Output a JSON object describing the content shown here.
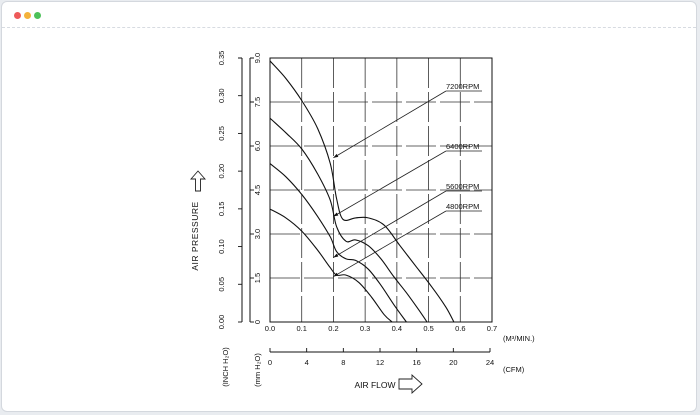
{
  "window": {
    "buttons": [
      {
        "name": "close",
        "color": "#ee5a5a"
      },
      {
        "name": "minimize",
        "color": "#f4b23b"
      },
      {
        "name": "zoom",
        "color": "#4dc15a"
      }
    ]
  },
  "chart_data": {
    "type": "line",
    "title": "",
    "y_axis_label": "AIR PRESSURE",
    "y_inch_unit": "(INCH H₂O)",
    "y_mm_unit": "(mm H₂O)",
    "y_inch_ticks": [
      "0.00",
      "0.05",
      "0.10",
      "0.15",
      "0.20",
      "0.25",
      "0.30",
      "0.35"
    ],
    "y_mm_ticks": [
      "0",
      "1.5",
      "3.0",
      "4.5",
      "6.0",
      "7.5",
      "9.0"
    ],
    "ylim_mm": [
      0,
      9
    ],
    "x_axis_label": "AIR FLOW",
    "x_m3_unit": "(M³/MIN.)",
    "x_m3_ticks": [
      "0.0",
      "0.1",
      "0.2",
      "0.3",
      "0.4",
      "0.5",
      "0.6",
      "0.7"
    ],
    "xlim_m3": [
      0,
      0.7
    ],
    "x_cfm_unit": "(CFM)",
    "x_cfm_ticks": [
      "0",
      "4",
      "8",
      "12",
      "16",
      "20",
      "24"
    ],
    "grid": true,
    "series": [
      {
        "name": "7200RPM",
        "x": [
          0,
          0.05,
          0.1,
          0.15,
          0.19,
          0.21,
          0.23,
          0.27,
          0.31,
          0.36,
          0.41,
          0.46,
          0.51,
          0.555,
          0.58
        ],
        "y": [
          8.9,
          8.3,
          7.55,
          6.6,
          5.4,
          4.2,
          3.5,
          3.55,
          3.55,
          3.3,
          2.6,
          1.9,
          1.2,
          0.5,
          0
        ]
      },
      {
        "name": "6400RPM",
        "x": [
          0,
          0.05,
          0.1,
          0.15,
          0.19,
          0.21,
          0.24,
          0.27,
          0.31,
          0.35,
          0.39,
          0.43,
          0.47,
          0.495
        ],
        "y": [
          6.95,
          6.45,
          5.9,
          5.05,
          4.15,
          3.25,
          2.75,
          2.8,
          2.6,
          2.15,
          1.55,
          1.0,
          0.4,
          0
        ]
      },
      {
        "name": "5600RPM",
        "x": [
          0,
          0.05,
          0.1,
          0.15,
          0.19,
          0.21,
          0.24,
          0.27,
          0.31,
          0.35,
          0.39,
          0.43
        ],
        "y": [
          5.4,
          4.95,
          4.35,
          3.6,
          2.9,
          2.4,
          2.15,
          2.1,
          1.8,
          1.25,
          0.6,
          0
        ]
      },
      {
        "name": "4800RPM",
        "x": [
          0,
          0.05,
          0.1,
          0.15,
          0.19,
          0.21,
          0.24,
          0.28,
          0.32,
          0.36,
          0.385
        ],
        "y": [
          3.85,
          3.55,
          3.1,
          2.45,
          1.85,
          1.6,
          1.6,
          1.35,
          0.85,
          0.25,
          0
        ]
      }
    ],
    "annotations": [
      {
        "series": "7200RPM",
        "label": "7200RPM",
        "target_x": 0.2,
        "target_y": 5.6
      },
      {
        "series": "6400RPM",
        "label": "6400RPM",
        "target_x": 0.2,
        "target_y": 3.6
      },
      {
        "series": "5600RPM",
        "label": "5600RPM",
        "target_x": 0.2,
        "target_y": 2.2
      },
      {
        "series": "4800RPM",
        "label": "4800RPM",
        "target_x": 0.2,
        "target_y": 1.55
      }
    ]
  }
}
